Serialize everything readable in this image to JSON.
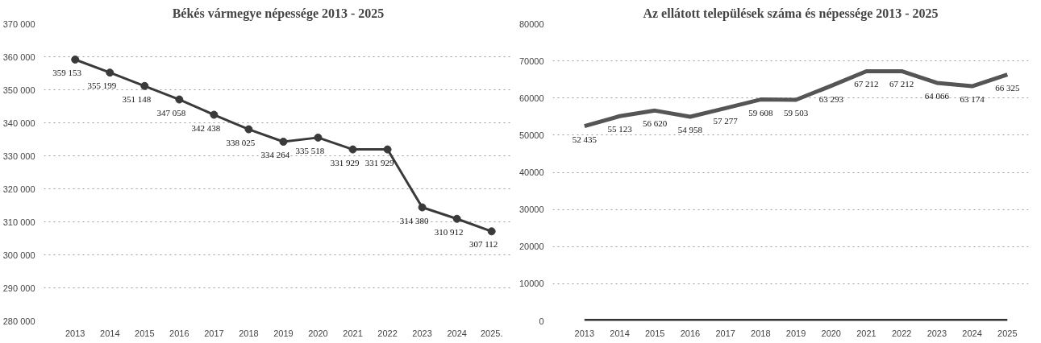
{
  "chart_data": [
    {
      "type": "line",
      "title": "Békés vármegye népessége 2013 - 2025",
      "categories": [
        "2013",
        "2014",
        "2015",
        "2016",
        "2017",
        "2018",
        "2019",
        "2020",
        "2021",
        "2022",
        "2023",
        "2024",
        "2025."
      ],
      "ylim": [
        280000,
        370000
      ],
      "yticks": [
        {
          "value": 280000,
          "label": "280 000"
        },
        {
          "value": 290000,
          "label": "290 000"
        },
        {
          "value": 300000,
          "label": "300 000"
        },
        {
          "value": 310000,
          "label": "310 000"
        },
        {
          "value": 320000,
          "label": "320 000"
        },
        {
          "value": 330000,
          "label": "330 000"
        },
        {
          "value": 340000,
          "label": "340 000"
        },
        {
          "value": 350000,
          "label": "350 000"
        },
        {
          "value": 360000,
          "label": "360 000"
        },
        {
          "value": 370000,
          "label": "370 000"
        }
      ],
      "grid": "y",
      "marker": "circle",
      "line_style": "solid",
      "series": [
        {
          "color": "#3a3a3a",
          "values": [
            359153,
            355199,
            351148,
            347058,
            342438,
            338025,
            334264,
            335518,
            331929,
            331929,
            314380,
            310912,
            307112
          ],
          "value_labels": [
            "359 153",
            "355 199",
            "351 148",
            "347 058",
            "342 438",
            "338 025",
            "334 264",
            "335 518",
            "331 929",
            "331 929",
            "314 380",
            "310 912",
            "307 112"
          ]
        }
      ]
    },
    {
      "type": "line",
      "title": "Az ellátott települések száma és népessége 2013 - 2025",
      "categories": [
        "2013",
        "2014",
        "2015",
        "2016",
        "2017",
        "2018",
        "2019",
        "2020",
        "2021",
        "2022",
        "2023",
        "2024",
        "2025"
      ],
      "ylim": [
        0,
        80000
      ],
      "yticks": [
        0,
        10000,
        20000,
        30000,
        40000,
        50000,
        60000,
        70000,
        80000
      ],
      "grid": "y",
      "marker": "none",
      "line_style": "solid",
      "series": [
        {
          "color": "#555555",
          "values": [
            52435,
            55123,
            56620,
            54958,
            57277,
            59608,
            59503,
            63293,
            67212,
            67212,
            64066,
            63174,
            66325
          ],
          "value_labels": [
            "52 435",
            "55 123",
            "56 620",
            "54 958",
            "57 277",
            "59 608",
            "59 503",
            "63 293",
            "67 212",
            "67 212",
            "64 066",
            "63 174",
            "66 325"
          ]
        },
        {
          "color": "#333333",
          "values": [
            0,
            0,
            0,
            0,
            0,
            0,
            0,
            0,
            0,
            0,
            0,
            0,
            0
          ]
        }
      ]
    }
  ]
}
